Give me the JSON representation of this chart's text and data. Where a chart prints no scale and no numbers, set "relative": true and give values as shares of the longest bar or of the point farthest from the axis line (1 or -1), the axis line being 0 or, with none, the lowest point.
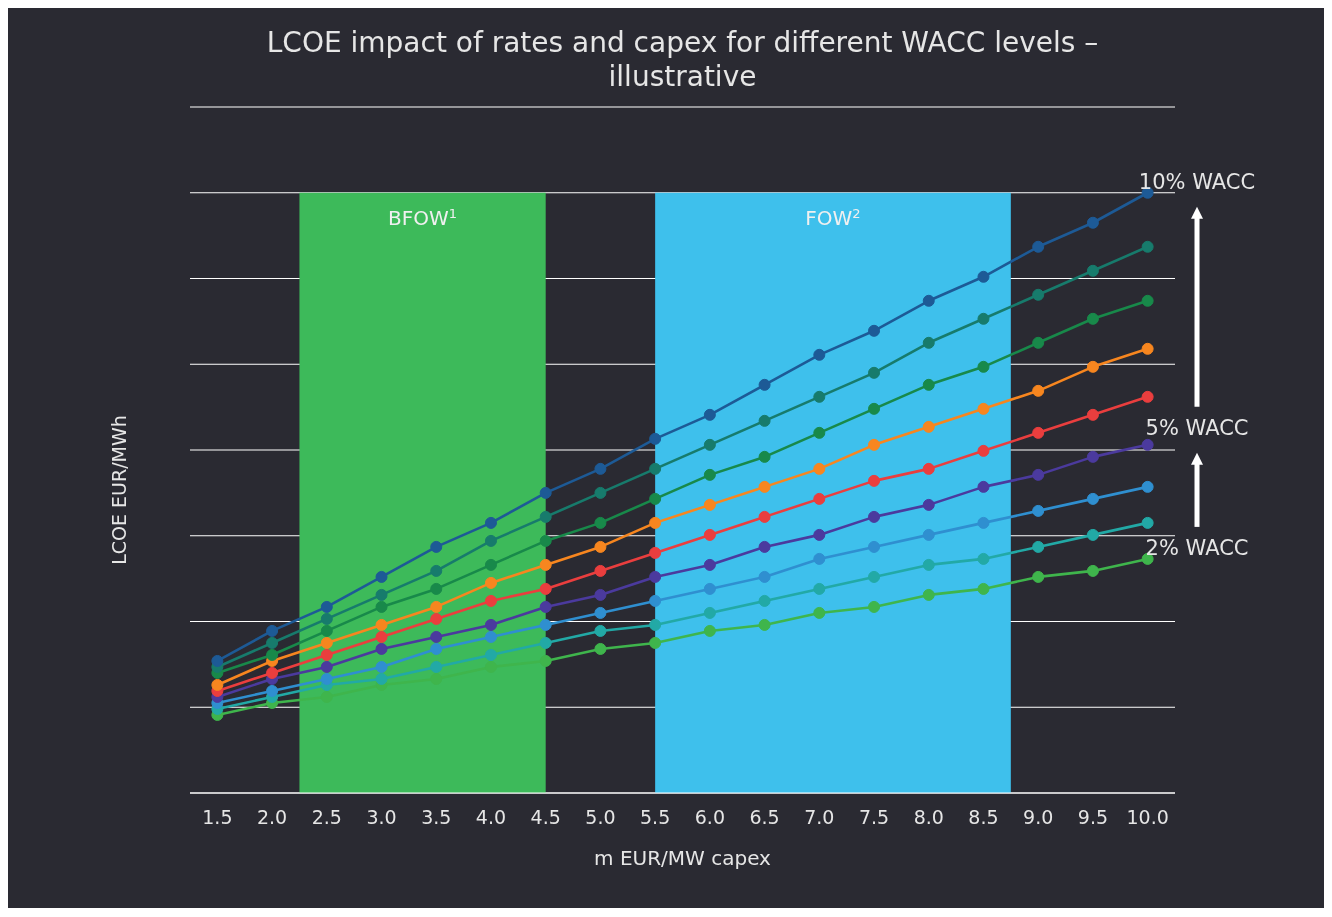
{
  "chart_data": {
    "type": "line",
    "title": "LCOE impact of rates and capex for different WACC levels – illustrative",
    "xlabel": "m EUR/MW capex",
    "ylabel": "LCOE EUR/MWh",
    "relative": true,
    "grid": "y",
    "marker": "circle",
    "line_style": "solid",
    "x": [
      1.5,
      2,
      2.5,
      3,
      3.5,
      4,
      4.5,
      5,
      5.5,
      6,
      6.5,
      7,
      7.5,
      8,
      8.5,
      9,
      9.5,
      10
    ],
    "xlim": [
      1.25,
      10.25
    ],
    "xticks": [
      1.5,
      {
        "value": 2,
        "label": "2.0"
      },
      2.5,
      {
        "value": 3,
        "label": "3.0"
      },
      3.5,
      {
        "value": 4,
        "label": "4.0"
      },
      4.5,
      {
        "value": 5,
        "label": "5.0"
      },
      5.5,
      {
        "value": 6,
        "label": "6.0"
      },
      6.5,
      {
        "value": 7,
        "label": "7.0"
      },
      7.5,
      {
        "value": 8,
        "label": "8.0"
      },
      8.5,
      {
        "value": 9,
        "label": "9.0"
      },
      9.5,
      {
        "value": 10,
        "label": "10.0"
      }
    ],
    "bands": [
      {
        "axis": "x",
        "from": 2.25,
        "to": 4.5,
        "label": "BFOW$^{1}$",
        "color": "#3dba5a"
      },
      {
        "axis": "x",
        "from": 5.5,
        "to": 8.75,
        "label": "FOW$^{2}$",
        "color": "#3ec0ec"
      }
    ],
    "series": [
      {
        "color": "#3fb54c",
        "values": [
          0.13,
          0.15,
          0.16,
          0.18,
          0.19,
          0.21,
          0.22,
          0.24,
          0.25,
          0.27,
          0.28,
          0.3,
          0.31,
          0.33,
          0.34,
          0.36,
          0.37,
          0.39
        ]
      },
      {
        "color": "#22a9a6",
        "values": [
          0.14,
          0.16,
          0.18,
          0.19,
          0.21,
          0.23,
          0.25,
          0.27,
          0.28,
          0.3,
          0.32,
          0.34,
          0.36,
          0.38,
          0.39,
          0.41,
          0.43,
          0.45
        ]
      },
      {
        "color": "#2f8fd0",
        "values": [
          0.15,
          0.17,
          0.19,
          0.21,
          0.24,
          0.26,
          0.28,
          0.3,
          0.32,
          0.34,
          0.36,
          0.39,
          0.41,
          0.43,
          0.45,
          0.47,
          0.49,
          0.51
        ]
      },
      {
        "color": "#4b3a9e",
        "values": [
          0.16,
          0.19,
          0.21,
          0.24,
          0.26,
          0.28,
          0.31,
          0.33,
          0.36,
          0.38,
          0.41,
          0.43,
          0.46,
          0.48,
          0.51,
          0.53,
          0.56,
          0.58
        ]
      },
      {
        "color": "#ea3e3e",
        "values": [
          0.17,
          0.2,
          0.23,
          0.26,
          0.29,
          0.32,
          0.34,
          0.37,
          0.4,
          0.43,
          0.46,
          0.49,
          0.52,
          0.54,
          0.57,
          0.6,
          0.63,
          0.66
        ]
      },
      {
        "color": "#f7861f",
        "values": [
          0.18,
          0.22,
          0.25,
          0.28,
          0.31,
          0.35,
          0.38,
          0.41,
          0.45,
          0.48,
          0.51,
          0.54,
          0.58,
          0.61,
          0.64,
          0.67,
          0.71,
          0.74
        ]
      },
      {
        "color": "#18894a",
        "values": [
          0.2,
          0.23,
          0.27,
          0.31,
          0.34,
          0.38,
          0.42,
          0.45,
          0.49,
          0.53,
          0.56,
          0.6,
          0.64,
          0.68,
          0.71,
          0.75,
          0.79,
          0.82
        ]
      },
      {
        "color": "#177b6c",
        "values": [
          0.21,
          0.25,
          0.29,
          0.33,
          0.37,
          0.42,
          0.46,
          0.5,
          0.54,
          0.58,
          0.62,
          0.66,
          0.7,
          0.75,
          0.79,
          0.83,
          0.87,
          0.91
        ]
      },
      {
        "color": "#1d5a96",
        "values": [
          0.22,
          0.27,
          0.31,
          0.36,
          0.41,
          0.45,
          0.5,
          0.54,
          0.59,
          0.63,
          0.68,
          0.73,
          0.77,
          0.82,
          0.86,
          0.91,
          0.95,
          1
        ]
      }
    ],
    "annotations": [
      "10% WACC",
      "5% WACC",
      "2% WACC"
    ]
  }
}
